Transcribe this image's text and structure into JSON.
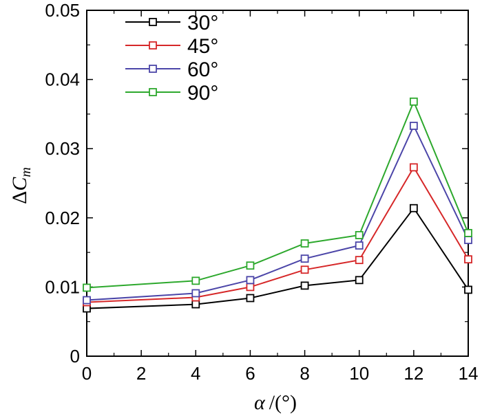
{
  "chart_data": {
    "type": "line",
    "title": "",
    "xlabel_symbol": "α",
    "xlabel_unit": "/(°)",
    "ylabel_prefix": "Δ",
    "ylabel_main": "C",
    "ylabel_sub": "m",
    "xlim": [
      0,
      14
    ],
    "ylim": [
      0,
      0.05
    ],
    "xticks": [
      0,
      2,
      4,
      6,
      8,
      10,
      12,
      14
    ],
    "yticks": [
      0,
      0.01,
      0.02,
      0.03,
      0.04,
      0.05
    ],
    "xtick_labels": [
      "0",
      "2",
      "4",
      "6",
      "8",
      "10",
      "12",
      "14"
    ],
    "ytick_labels": [
      "0",
      "0.01",
      "0.02",
      "0.03",
      "0.04",
      "0.05"
    ],
    "x": [
      0,
      4,
      6,
      8,
      10,
      12,
      14
    ],
    "legend_position": "top-left",
    "series": [
      {
        "name": "30°",
        "color": "#000000",
        "values": [
          0.0069,
          0.0075,
          0.0084,
          0.0102,
          0.011,
          0.0214,
          0.0096
        ]
      },
      {
        "name": "45°",
        "color": "#d62728",
        "values": [
          0.0078,
          0.0085,
          0.01,
          0.0125,
          0.0139,
          0.0273,
          0.014
        ]
      },
      {
        "name": "60°",
        "color": "#4b45a8",
        "values": [
          0.0081,
          0.0091,
          0.011,
          0.0141,
          0.016,
          0.0333,
          0.0168
        ]
      },
      {
        "name": "90°",
        "color": "#2ca82c",
        "values": [
          0.0099,
          0.0109,
          0.0131,
          0.0163,
          0.0175,
          0.0368,
          0.0178
        ]
      }
    ]
  }
}
